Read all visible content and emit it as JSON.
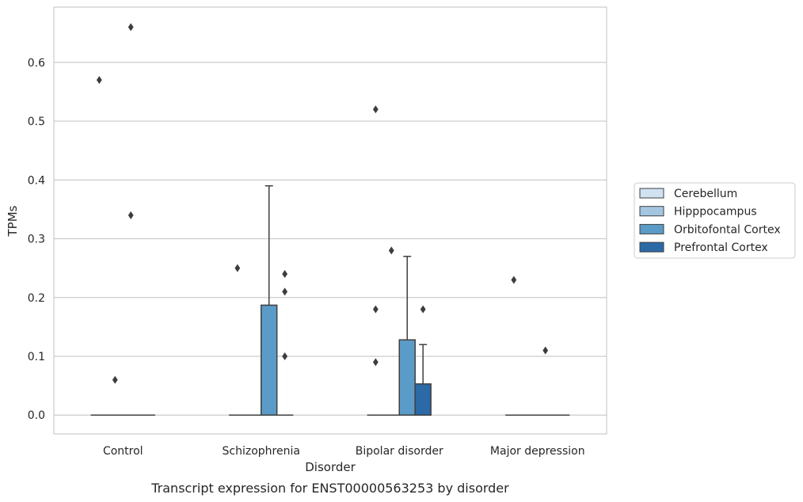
{
  "caption": "Transcript expression for ENST00000563253 by disorder",
  "chart_data": {
    "type": "box",
    "xlabel": "Disorder",
    "ylabel": "TPMs",
    "ylim": [
      -0.032,
      0.694
    ],
    "yticks": [
      "0.0",
      "0.1",
      "0.2",
      "0.3",
      "0.4",
      "0.5",
      "0.6"
    ],
    "grid": "horizontal",
    "legend_position": "right",
    "categories": [
      "Control",
      "Schizophrenia",
      "Bipolar disorder",
      "Major depression"
    ],
    "series": [
      {
        "name": "Cerebellum",
        "color": "#d0e1f2",
        "boxes": [
          {
            "q1": 0,
            "median": 0,
            "q3": 0,
            "whisker_low": 0,
            "whisker_high": 0,
            "outliers": [
              0.57
            ]
          },
          {
            "q1": 0,
            "median": 0,
            "q3": 0,
            "whisker_low": 0,
            "whisker_high": 0,
            "outliers": [
              0.25
            ]
          },
          {
            "q1": 0,
            "median": 0,
            "q3": 0,
            "whisker_low": 0,
            "whisker_high": 0,
            "outliers": [
              0.52,
              0.18,
              0.09
            ]
          },
          {
            "q1": 0,
            "median": 0,
            "q3": 0,
            "whisker_low": 0,
            "whisker_high": 0,
            "outliers": [
              0.23
            ]
          }
        ]
      },
      {
        "name": "Hipppocampus",
        "color": "#a3c6e0",
        "boxes": [
          {
            "q1": 0,
            "median": 0,
            "q3": 0,
            "whisker_low": 0,
            "whisker_high": 0,
            "outliers": [
              0.06
            ]
          },
          {
            "q1": 0,
            "median": 0,
            "q3": 0,
            "whisker_low": 0,
            "whisker_high": 0,
            "outliers": []
          },
          {
            "q1": 0,
            "median": 0,
            "q3": 0,
            "whisker_low": 0,
            "whisker_high": 0,
            "outliers": [
              0.28
            ]
          },
          {
            "q1": 0,
            "median": 0,
            "q3": 0,
            "whisker_low": 0,
            "whisker_high": 0,
            "outliers": []
          }
        ]
      },
      {
        "name": "Orbitofontal Cortex",
        "color": "#5b9bc8",
        "boxes": [
          {
            "q1": 0,
            "median": 0,
            "q3": 0,
            "whisker_low": 0,
            "whisker_high": 0,
            "outliers": [
              0.66,
              0.34
            ]
          },
          {
            "q1": 0,
            "median": 0,
            "q3": 0.187,
            "whisker_low": 0,
            "whisker_high": 0.39,
            "outliers": []
          },
          {
            "q1": 0,
            "median": 0,
            "q3": 0.128,
            "whisker_low": 0,
            "whisker_high": 0.27,
            "outliers": []
          },
          {
            "q1": 0,
            "median": 0,
            "q3": 0,
            "whisker_low": 0,
            "whisker_high": 0,
            "outliers": [
              0.11
            ]
          }
        ]
      },
      {
        "name": "Prefrontal Cortex",
        "color": "#2b6aa7",
        "boxes": [
          {
            "q1": 0,
            "median": 0,
            "q3": 0,
            "whisker_low": 0,
            "whisker_high": 0,
            "outliers": []
          },
          {
            "q1": 0,
            "median": 0,
            "q3": 0,
            "whisker_low": 0,
            "whisker_high": 0,
            "outliers": [
              0.24,
              0.21,
              0.1
            ]
          },
          {
            "q1": 0,
            "median": 0,
            "q3": 0.053,
            "whisker_low": 0,
            "whisker_high": 0.12,
            "outliers": [
              0.18
            ]
          },
          {
            "q1": 0,
            "median": 0,
            "q3": 0,
            "whisker_low": 0,
            "whisker_high": 0,
            "outliers": []
          }
        ]
      }
    ]
  }
}
